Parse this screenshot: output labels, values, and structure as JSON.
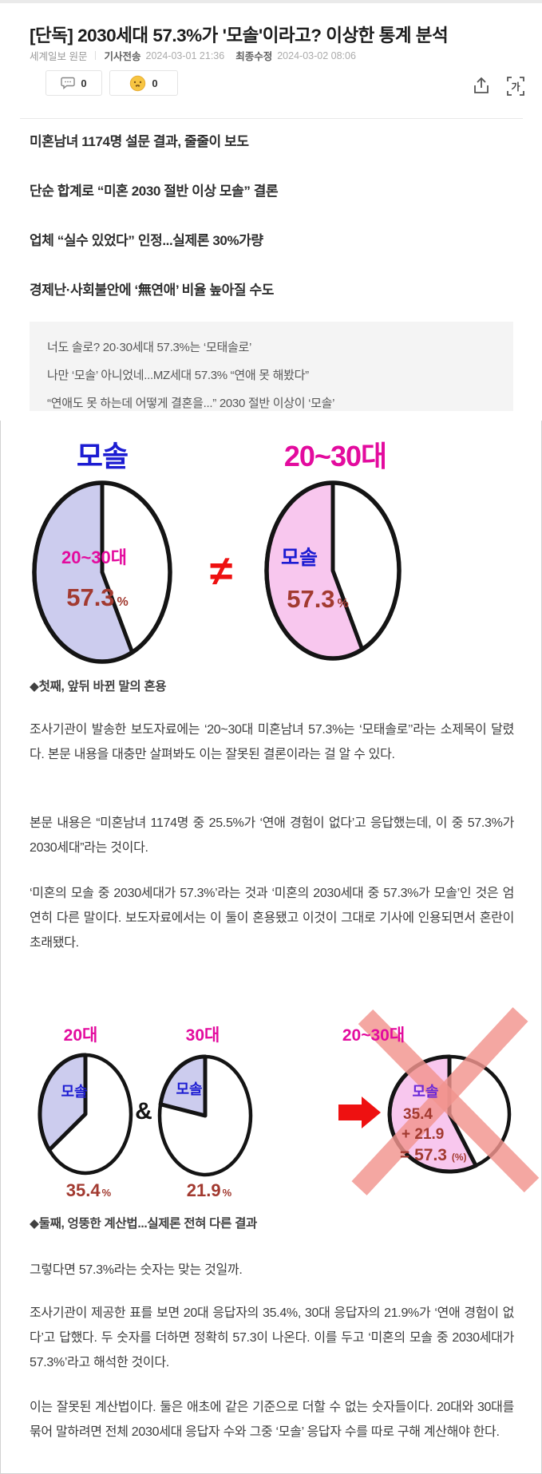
{
  "header": {
    "title": "[단독] 2030세대 57.3%가 '모솔'이라고? 이상한 통계 분석",
    "source": "세계일보 원문",
    "sent_label": "기사전송",
    "sent_time": "2024-03-01 21:36",
    "updated_label": "최종수정",
    "updated_time": "2024-03-02 08:06"
  },
  "actions": {
    "comment_count": "0",
    "reaction_count": "0",
    "resize_glyph": "가"
  },
  "subheads": [
    "미혼남녀 1174명 설문 결과, 줄줄이 보도",
    "단순 합계로 “미혼 2030 절반 이상 모솔” 결론",
    "업체 “실수 있었다” 인정...실제론 30%가량",
    "경제난·사회불안에 ‘無연애’ 비율 높아질 수도"
  ],
  "quote_lines": [
    "너도 솔로? 20·30세대 57.3%는 ‘모태솔로’",
    "나만 ‘모솔’ 아니었네...MZ세대 57.3% “연애 못 해봤다”",
    "“연애도 못 하는데 어떻게 결혼을...” 2030 절반 이상이 ‘모솔’"
  ],
  "sections": [
    {
      "caption": "◆첫째, 앞뒤 바뀐 말의 혼용",
      "paragraphs": [
        "조사기관이 발송한 보도자료에는 ‘20~30대 미혼남녀 57.3%는 ‘모태솔로’’라는 소제목이 달렸다. 본문 내용을 대충만 살펴봐도 이는 잘못된 결론이라는 걸 알 수 있다.",
        "본문 내용은 “미혼남녀 1174명 중 25.5%가 ‘연애 경험이 없다’고 응답했는데, 이 중 57.3%가 2030세대”라는 것이다.",
        "‘미혼의 모솔 중 2030세대가 57.3%’라는 것과 ‘미혼의 2030세대 중 57.3%가 모솔’인 것은 엄연히 다른 말이다. 보도자료에서는 이 둘이 혼용됐고 이것이 그대로 기사에 인용되면서 혼란이 초래됐다."
      ]
    },
    {
      "caption": "◆둘째, 엉뚱한 계산법...실제론 전혀 다른 결과",
      "paragraphs": [
        "그렇다면 57.3%라는 숫자는 맞는 것일까.",
        "조사기관이 제공한 표를 보면 20대 응답자의 35.4%, 30대 응답자의 21.9%가 ‘연애 경험이 없다’고 답했다. 두 숫자를 더하면 정확히 57.3이 나온다. 이를 두고 ‘미혼의 모솔 중 2030세대가 57.3%’라고 해석한 것이다.",
        "이는 잘못된 계산법이다. 둘은 애초에 같은 기준으로 더할 수 없는 숫자들이다. 20대와 30대를 묶어 말하려면 전체 2030세대 응답자 수와 그중 ‘모솔’ 응답자 수를 따로 구해 계산해야 한다."
      ]
    }
  ],
  "symbols": {
    "neq": "≠",
    "amp": "&",
    "unit": "%",
    "sum_lines": [
      "35.4",
      "+ 21.9",
      "= 57.3"
    ],
    "sum_unit": "(%)"
  },
  "chart_data": [
    {
      "type": "pie",
      "title": "모솔",
      "title_color": "#1c1cd2",
      "slices": [
        {
          "label": "20~30대",
          "value": 57.3,
          "color": "#ccccee"
        },
        {
          "label": "",
          "value": 42.7,
          "color": "#ffffff"
        }
      ]
    },
    {
      "type": "pie",
      "title": "20~30대",
      "title_color": "#e30b9e",
      "relation_to_previous": "≠",
      "slices": [
        {
          "label": "모솔",
          "value": 57.3,
          "color": "#f8c7ee"
        },
        {
          "label": "",
          "value": 42.7,
          "color": "#ffffff"
        }
      ]
    },
    {
      "type": "pie",
      "title": "20대",
      "slices": [
        {
          "label": "모솔",
          "value": 35.4,
          "color": "#ccccee"
        },
        {
          "label": "",
          "value": 64.6,
          "color": "#ffffff"
        }
      ]
    },
    {
      "type": "pie",
      "title": "30대",
      "relation_to_previous": "&",
      "slices": [
        {
          "label": "모솔",
          "value": 21.9,
          "color": "#ccccee"
        },
        {
          "label": "",
          "value": 78.1,
          "color": "#ffffff"
        }
      ]
    },
    {
      "type": "pie",
      "title": "20~30대",
      "crossed_out": true,
      "annotation": "35.4 + 21.9 = 57.3 (%)",
      "slices": [
        {
          "label": "모솔",
          "value": 57.3,
          "color": "#f8c7ee"
        },
        {
          "label": "",
          "value": 42.7,
          "color": "#ffffff"
        }
      ]
    }
  ]
}
